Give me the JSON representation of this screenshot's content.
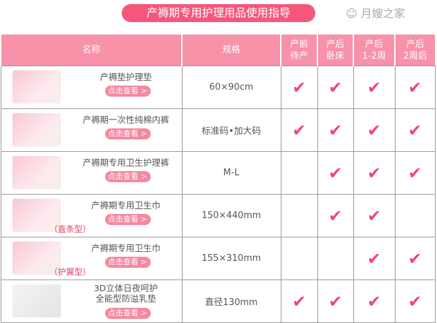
{
  "title": "产褥期专用护理用品使用指导",
  "headers": [
    "名称",
    "规格",
    "产前\n待产",
    "产后\n卧床",
    "产后\n1-2周",
    "产后\n2周后"
  ],
  "button_label": "点击查看 >",
  "rows": [
    {
      "name": "产褥垫护理垫",
      "sub": "",
      "spec": "60×90cm",
      "checks": [
        true,
        true,
        true,
        true
      ]
    },
    {
      "name": "产褥期一次性纯棉内裤",
      "sub": "",
      "spec": "标准码•加大码",
      "checks": [
        true,
        true,
        true,
        true
      ]
    },
    {
      "name": "产褥期专用卫生护理裤",
      "sub": "",
      "spec": "M-L",
      "checks": [
        false,
        true,
        true,
        true
      ]
    },
    {
      "name": "产褥期专用卫生巾",
      "sub": "（直条型）",
      "spec": "150×440mm",
      "checks": [
        false,
        true,
        true,
        false
      ]
    },
    {
      "name": "产褥期专用卫生巾",
      "sub": "（护翼型）",
      "spec": "155×310mm",
      "checks": [
        false,
        false,
        true,
        true
      ]
    },
    {
      "name": "3D立体日夜呵护\n全能型防溢乳垫",
      "sub": "",
      "spec": "直径130mm",
      "checks": [
        true,
        true,
        true,
        true
      ]
    }
  ],
  "check_icon": "checkmark-icon",
  "accent": "#f5577c",
  "watermark": "月嫂之家"
}
